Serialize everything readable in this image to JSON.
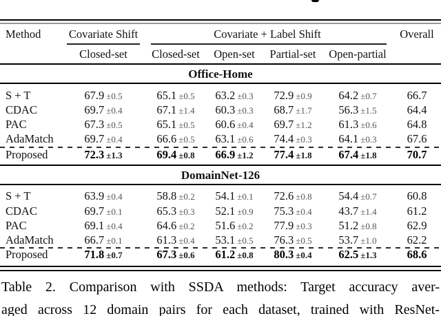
{
  "table": {
    "header": {
      "method": "Method",
      "group1": "Covariate Shift",
      "group2": "Covariate + Label Shift",
      "overall": "Overall",
      "subcols": [
        "Closed-set",
        "Closed-set",
        "Open-set",
        "Partial-set",
        "Open-partial"
      ]
    },
    "sections": [
      {
        "title": "Office-Home",
        "rows": [
          {
            "method": "S + T",
            "bold": false,
            "cells": [
              [
                "67.9",
                "±0.5"
              ],
              [
                "65.1",
                "±0.5"
              ],
              [
                "63.2",
                "±0.3"
              ],
              [
                "72.9",
                "±0.9"
              ],
              [
                "64.2",
                "±0.7"
              ]
            ],
            "overall": "66.7"
          },
          {
            "method": "CDAC",
            "bold": false,
            "cells": [
              [
                "69.7",
                "±0.4"
              ],
              [
                "67.1",
                "±1.4"
              ],
              [
                "60.3",
                "±0.3"
              ],
              [
                "68.7",
                "±1.7"
              ],
              [
                "56.3",
                "±1.5"
              ]
            ],
            "overall": "64.4"
          },
          {
            "method": "PAC",
            "bold": false,
            "cells": [
              [
                "67.3",
                "±0.5"
              ],
              [
                "65.1",
                "±0.5"
              ],
              [
                "60.6",
                "±0.4"
              ],
              [
                "69.7",
                "±1.2"
              ],
              [
                "61.3",
                "±0.6"
              ]
            ],
            "overall": "64.8"
          },
          {
            "method": "AdaMatch",
            "bold": false,
            "cells": [
              [
                "69.7",
                "±0.4"
              ],
              [
                "66.6",
                "±0.5"
              ],
              [
                "63.1",
                "±0.6"
              ],
              [
                "74.4",
                "±0.3"
              ],
              [
                "64.1",
                "±0.3"
              ]
            ],
            "overall": "67.6"
          },
          {
            "method": "Proposed",
            "bold": true,
            "cells": [
              [
                "72.3",
                "±1.3"
              ],
              [
                "69.4",
                "±0.8"
              ],
              [
                "66.9",
                "±1.2"
              ],
              [
                "77.4",
                "±1.8"
              ],
              [
                "67.4",
                "±1.8"
              ]
            ],
            "overall": "70.7"
          }
        ]
      },
      {
        "title": "DomainNet-126",
        "rows": [
          {
            "method": "S + T",
            "bold": false,
            "cells": [
              [
                "63.9",
                "±0.4"
              ],
              [
                "58.8",
                "±0.2"
              ],
              [
                "54.1",
                "±0.1"
              ],
              [
                "72.6",
                "±0.8"
              ],
              [
                "54.4",
                "±0.7"
              ]
            ],
            "overall": "60.8"
          },
          {
            "method": "CDAC",
            "bold": false,
            "cells": [
              [
                "69.7",
                "±0.1"
              ],
              [
                "65.3",
                "±0.3"
              ],
              [
                "52.1",
                "±0.9"
              ],
              [
                "75.3",
                "±0.4"
              ],
              [
                "43.7",
                "±1.4"
              ]
            ],
            "overall": "61.2"
          },
          {
            "method": "PAC",
            "bold": false,
            "cells": [
              [
                "69.1",
                "±0.4"
              ],
              [
                "64.6",
                "±0.2"
              ],
              [
                "51.6",
                "±0.2"
              ],
              [
                "77.9",
                "±0.3"
              ],
              [
                "51.2",
                "±0.8"
              ]
            ],
            "overall": "62.9"
          },
          {
            "method": "AdaMatch",
            "bold": false,
            "cells": [
              [
                "66.7",
                "±0.1"
              ],
              [
                "61.3",
                "±0.4"
              ],
              [
                "53.1",
                "±0.5"
              ],
              [
                "76.3",
                "±0.5"
              ],
              [
                "53.7",
                "±1.0"
              ]
            ],
            "overall": "62.2"
          },
          {
            "method": "Proposed",
            "bold": true,
            "cells": [
              [
                "71.8",
                "±0.7"
              ],
              [
                "67.3",
                "±0.6"
              ],
              [
                "61.2",
                "±0.8"
              ],
              [
                "80.3",
                "±0.4"
              ],
              [
                "62.5",
                "±1.3"
              ]
            ],
            "overall": "68.6"
          }
        ]
      }
    ]
  },
  "caption": {
    "line1": "Table 2. Comparison with SSDA methods: Target accuracy aver-",
    "line2": "aged across 12 domain pairs for each dataset, trained with ResNet-"
  },
  "colors": {
    "text": "#111111",
    "rule": "#000000",
    "top_second_rule": "#999999",
    "std_text": "#555555"
  }
}
